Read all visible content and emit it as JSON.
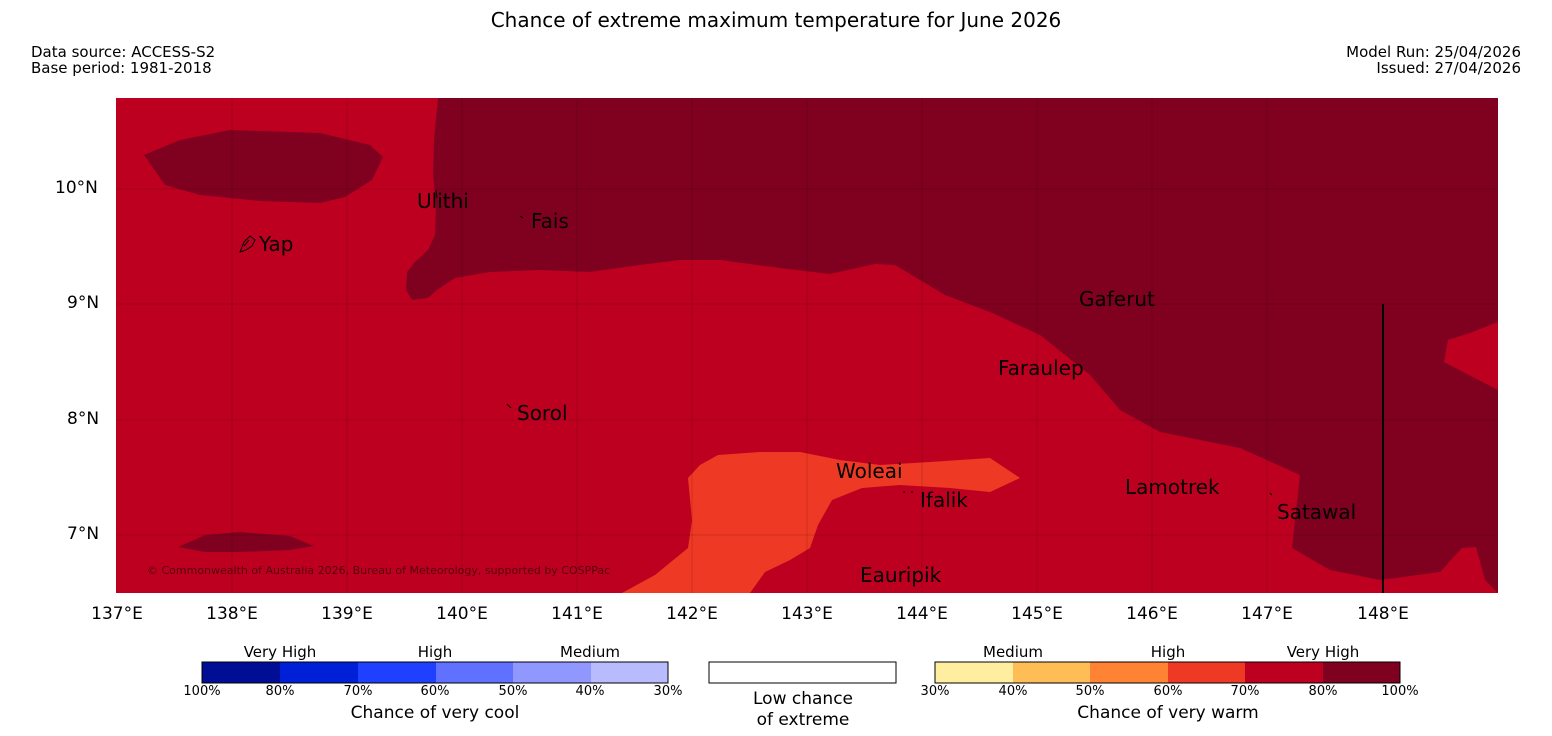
{
  "title": "Chance of extreme maximum temperature for June 2026",
  "header": {
    "data_source": "Data source: ACCESS-S2",
    "base_period": "Base period: 1981-2018",
    "model_run": "Model Run: 25/04/2026",
    "issued": "Issued: 27/04/2026"
  },
  "map": {
    "lat_labels": [
      "10°N",
      "9°N",
      "8°N",
      "7°N"
    ],
    "lon_labels": [
      "137°E",
      "138°E",
      "139°E",
      "140°E",
      "141°E",
      "142°E",
      "143°E",
      "144°E",
      "145°E",
      "146°E",
      "147°E",
      "148°E"
    ],
    "places": {
      "yap": "Yap",
      "ulithi": "Ulithi",
      "fais": "Fais",
      "sorol": "Sorol",
      "gaferut": "Gaferut",
      "faraulep": "Faraulep",
      "woleai": "Woleai",
      "ifalik": "Ifalik",
      "lamotrek": "Lamotrek",
      "satawal": "Satawal",
      "eauripik": "Eauripik"
    },
    "copyright": "© Commonwealth of Australia 2026, Bureau of Meteorology, supported by COSPPac",
    "colors": {
      "very_high_80_100": "#800020",
      "very_high_70_80": "#be0020",
      "high_60_70": "#ee3a24"
    }
  },
  "legend": {
    "cool": {
      "categories": [
        "Very High",
        "High",
        "Medium"
      ],
      "ticks": [
        "100%",
        "80%",
        "70%",
        "60%",
        "50%",
        "40%",
        "30%"
      ],
      "colors": [
        "#000e96",
        "#0020d8",
        "#2040ff",
        "#6070ff",
        "#9098ff",
        "#b8bcff"
      ],
      "caption": "Chance of very cool"
    },
    "low": {
      "caption_line1": "Low chance",
      "caption_line2": "of extreme",
      "color": "#ffffff"
    },
    "warm": {
      "categories": [
        "Medium",
        "High",
        "Very High"
      ],
      "ticks": [
        "30%",
        "40%",
        "50%",
        "60%",
        "70%",
        "80%",
        "100%"
      ],
      "colors": [
        "#ffeea0",
        "#ffbe55",
        "#ff8235",
        "#ee3a24",
        "#be0020",
        "#800020"
      ],
      "caption": "Chance of very warm"
    }
  }
}
